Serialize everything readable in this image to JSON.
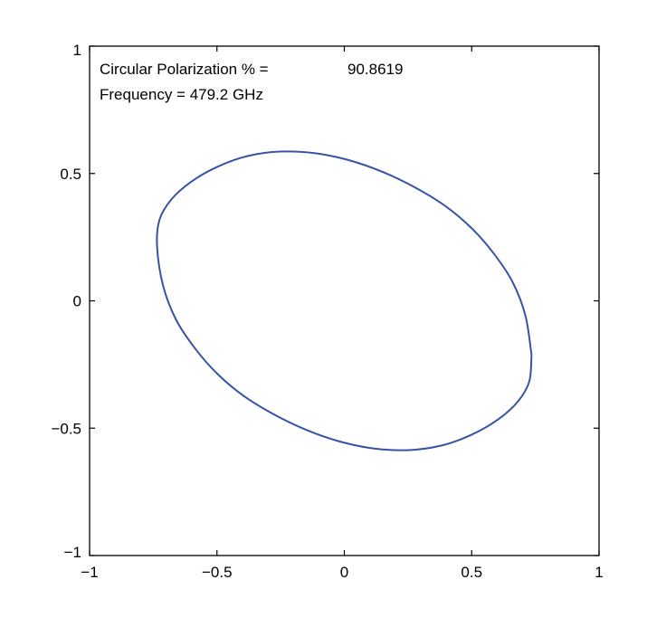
{
  "colors": {
    "curve": "#3753a6",
    "value_text": "#3753a6",
    "axes": "#000000",
    "background": "#ffffff"
  },
  "chart_data": {
    "type": "line",
    "title": "",
    "xlabel": "",
    "ylabel": "",
    "xlim": [
      -1,
      1
    ],
    "ylim": [
      -1,
      1
    ],
    "grid": false,
    "x_ticks": [
      -1,
      -0.5,
      0,
      0.5,
      1
    ],
    "y_ticks": [
      -1,
      -0.5,
      0,
      0.5,
      1
    ],
    "x_tick_labels": [
      "−1",
      "−0.5",
      "0",
      "0.5",
      "1"
    ],
    "y_tick_labels": [
      "−1",
      "−0.5",
      "0",
      "0.5",
      "1"
    ],
    "annotations": {
      "polarization_label": "Circular Polarization % =",
      "polarization_value": "90.8619",
      "frequency_text": "Frequency = 479.2 GHz"
    },
    "series": [
      {
        "shape": "ellipse",
        "points": [
          [
            0.735,
            -0.212
          ],
          [
            0.726,
            -0.317
          ],
          [
            0.68,
            -0.397
          ],
          [
            0.602,
            -0.467
          ],
          [
            0.499,
            -0.526
          ],
          [
            0.382,
            -0.568
          ],
          [
            0.254,
            -0.586
          ],
          [
            0.117,
            -0.58
          ],
          [
            -0.019,
            -0.552
          ],
          [
            -0.151,
            -0.506
          ],
          [
            -0.278,
            -0.445
          ],
          [
            -0.397,
            -0.372
          ],
          [
            -0.499,
            -0.286
          ],
          [
            -0.585,
            -0.188
          ],
          [
            -0.66,
            -0.075
          ],
          [
            -0.711,
            0.058
          ],
          [
            -0.735,
            0.212
          ],
          [
            -0.726,
            0.317
          ],
          [
            -0.68,
            0.397
          ],
          [
            -0.602,
            0.467
          ],
          [
            -0.499,
            0.526
          ],
          [
            -0.382,
            0.568
          ],
          [
            -0.254,
            0.586
          ],
          [
            -0.117,
            0.58
          ],
          [
            0.019,
            0.552
          ],
          [
            0.151,
            0.506
          ],
          [
            0.278,
            0.445
          ],
          [
            0.397,
            0.372
          ],
          [
            0.499,
            0.286
          ],
          [
            0.585,
            0.188
          ],
          [
            0.66,
            0.075
          ],
          [
            0.711,
            -0.058
          ],
          [
            0.735,
            -0.212
          ]
        ]
      }
    ]
  }
}
